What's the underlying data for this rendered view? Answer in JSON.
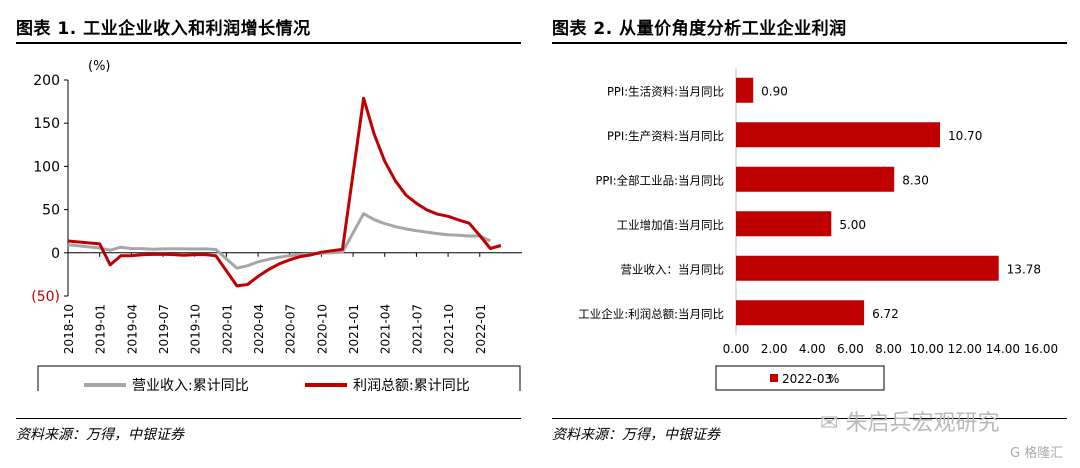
{
  "left": {
    "title": "图表 1. 工业企业收入和利润增长情况",
    "source": "资料来源：万得，中银证券",
    "chart_data": {
      "type": "line",
      "ylabel": "(%)",
      "ylim": [
        -50,
        200
      ],
      "yticks": [
        "200",
        "150",
        "100",
        "50",
        "0",
        "(50)"
      ],
      "ytick_values": [
        200,
        150,
        100,
        50,
        0,
        -50
      ],
      "xlim": [
        0,
        43
      ],
      "xtick_labels": [
        "2018-10",
        "2019-01",
        "2019-04",
        "2019-07",
        "2019-10",
        "2020-01",
        "2020-04",
        "2020-07",
        "2020-10",
        "2021-01",
        "2021-04",
        "2021-07",
        "2021-10",
        "2022-01"
      ],
      "xtick_positions": [
        0,
        3,
        6,
        9,
        12,
        15,
        18,
        21,
        24,
        27,
        30,
        33,
        36,
        39
      ],
      "series": [
        {
          "name": "营业收入:累计同比",
          "color": "#a6a6a6",
          "points": [
            [
              0,
              9.4
            ],
            [
              3,
              5.6
            ],
            [
              4,
              3.0
            ],
            [
              5,
              6.5
            ],
            [
              6,
              5.0
            ],
            [
              7,
              4.9
            ],
            [
              8,
              4.0
            ],
            [
              9,
              4.5
            ],
            [
              10,
              4.6
            ],
            [
              11,
              4.5
            ],
            [
              12,
              4.4
            ],
            [
              13,
              4.5
            ],
            [
              14,
              3.8
            ],
            [
              16,
              -17.7
            ],
            [
              17,
              -15.0
            ],
            [
              18,
              -10.4
            ],
            [
              19,
              -7.5
            ],
            [
              20,
              -5.1
            ],
            [
              21,
              -3.3
            ],
            [
              22,
              -2.0
            ],
            [
              23,
              -1.6
            ],
            [
              24,
              -0.6
            ],
            [
              25,
              0.1
            ],
            [
              26,
              0.8
            ],
            [
              28,
              45.3
            ],
            [
              29,
              38.3
            ],
            [
              30,
              33.8
            ],
            [
              31,
              30.3
            ],
            [
              32,
              27.7
            ],
            [
              33,
              25.6
            ],
            [
              34,
              23.8
            ],
            [
              35,
              22.2
            ],
            [
              36,
              20.9
            ],
            [
              37,
              20.3
            ],
            [
              38,
              19.5
            ],
            [
              39,
              19.4
            ],
            [
              40,
              13.8
            ]
          ]
        },
        {
          "name": "利润总额:累计同比",
          "color": "#c00000",
          "points": [
            [
              0,
              13.6
            ],
            [
              3,
              10.3
            ],
            [
              4,
              -14.0
            ],
            [
              5,
              -3.3
            ],
            [
              6,
              -3.4
            ],
            [
              7,
              -2.3
            ],
            [
              8,
              -1.8
            ],
            [
              9,
              -1.7
            ],
            [
              10,
              -2.1
            ],
            [
              11,
              -2.9
            ],
            [
              12,
              -2.1
            ],
            [
              13,
              -2.1
            ],
            [
              14,
              -3.3
            ],
            [
              16,
              -38.3
            ],
            [
              17,
              -36.7
            ],
            [
              18,
              -27.4
            ],
            [
              19,
              -19.3
            ],
            [
              20,
              -12.8
            ],
            [
              21,
              -8.1
            ],
            [
              22,
              -4.4
            ],
            [
              23,
              -2.4
            ],
            [
              24,
              0.7
            ],
            [
              25,
              2.4
            ],
            [
              26,
              4.1
            ],
            [
              28,
              178.9
            ],
            [
              29,
              137.3
            ],
            [
              30,
              106.0
            ],
            [
              31,
              83.4
            ],
            [
              32,
              66.9
            ],
            [
              33,
              57.3
            ],
            [
              34,
              49.5
            ],
            [
              35,
              44.7
            ],
            [
              36,
              42.2
            ],
            [
              37,
              38.0
            ],
            [
              38,
              34.3
            ],
            [
              39,
              20.0
            ],
            [
              40,
              5.0
            ],
            [
              41,
              8.5
            ]
          ]
        }
      ]
    }
  },
  "right": {
    "title": "图表 2. 从量价角度分析工业企业利润",
    "source": "资料来源：万得，中银证券",
    "chart_data": {
      "type": "bar",
      "orientation": "horizontal",
      "categories": [
        "PPI:生活资料:当月同比",
        "PPI:生产资料:当月同比",
        "PPI:全部工业品:当月同比",
        "工业增加值:当月同比",
        "营业收入：当月同比",
        "工业企业:利润总额:当月同比"
      ],
      "values": [
        0.9,
        10.7,
        8.3,
        5.0,
        13.78,
        6.72
      ],
      "value_labels": [
        "0.90",
        "10.70",
        "8.30",
        "5.00",
        "13.78",
        "6.72"
      ],
      "xlim": [
        0,
        16
      ],
      "xticks": [
        "0.00",
        "2.00",
        "4.00",
        "6.00",
        "8.00",
        "10.00",
        "12.00",
        "14.00",
        "16.00"
      ],
      "xtick_values": [
        0,
        2,
        4,
        6,
        8,
        10,
        12,
        14,
        16
      ],
      "series_name": "2022-03",
      "series_unit": "%",
      "color": "#c00000"
    }
  },
  "watermark": {
    "text": "朱启兵宏观研究",
    "logo": "G 格隆汇"
  }
}
